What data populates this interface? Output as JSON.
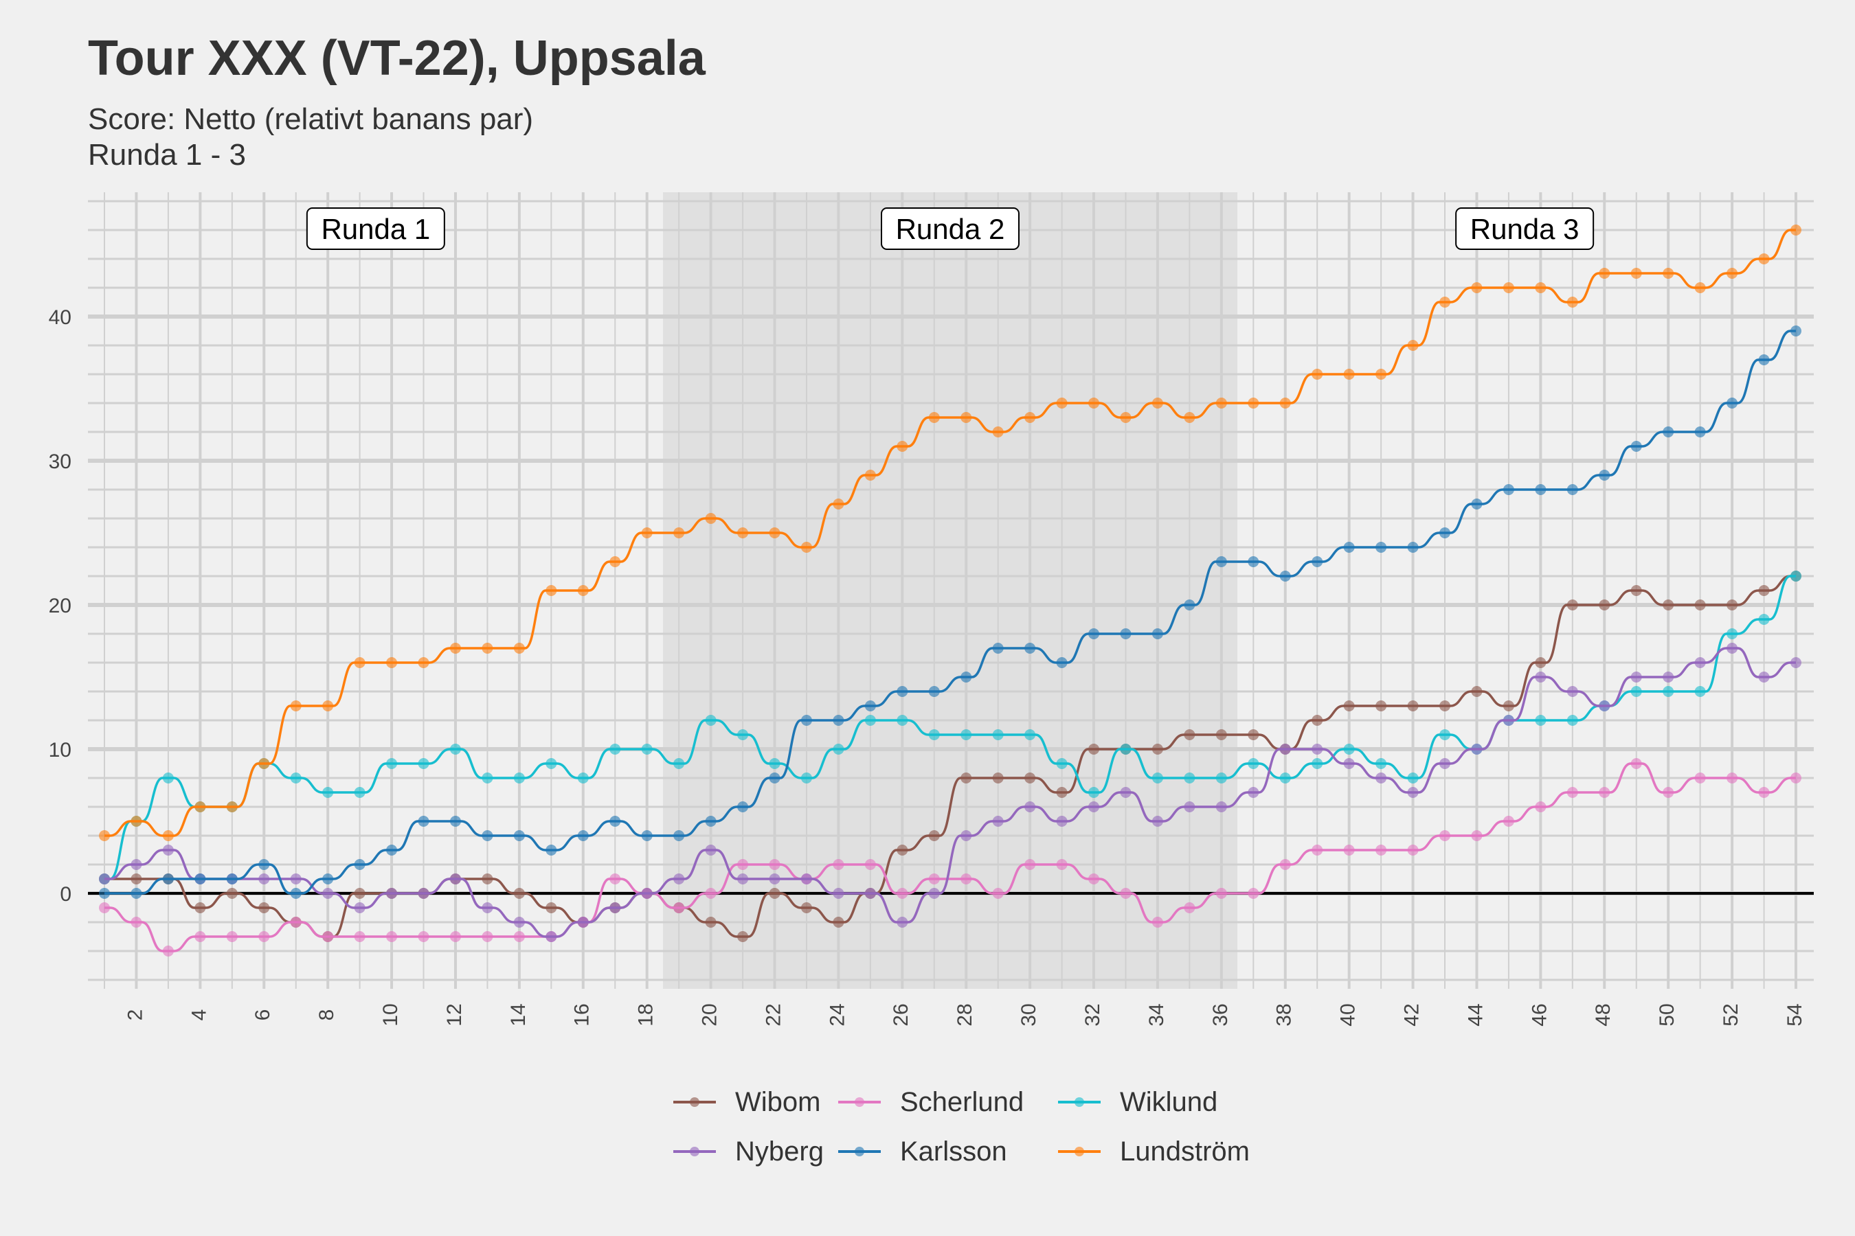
{
  "title": "Tour XXX (VT-22), Uppsala",
  "subtitle_line1": "Score: Netto (relativt banans par)",
  "subtitle_line2": "Runda 1 - 3",
  "chart_data": {
    "type": "line",
    "title": "Tour XXX (VT-22), Uppsala",
    "subtitle": "Score: Netto (relativt banans par) / Runda 1 - 3",
    "xlabel": "",
    "ylabel": "",
    "xlim": [
      1,
      54
    ],
    "ylim": [
      -6,
      48
    ],
    "x_ticks": [
      2,
      4,
      6,
      8,
      10,
      12,
      14,
      16,
      18,
      20,
      22,
      24,
      26,
      28,
      30,
      32,
      34,
      36,
      38,
      40,
      42,
      44,
      46,
      48,
      50,
      52,
      54
    ],
    "y_ticks": [
      0,
      10,
      20,
      30,
      40
    ],
    "grid": true,
    "legend_position": "bottom",
    "rounds": [
      {
        "label": "Runda 1",
        "from": 1,
        "to": 18,
        "shaded": false
      },
      {
        "label": "Runda 2",
        "from": 19,
        "to": 36,
        "shaded": true
      },
      {
        "label": "Runda 3",
        "from": 37,
        "to": 54,
        "shaded": false
      }
    ],
    "x": [
      1,
      2,
      3,
      4,
      5,
      6,
      7,
      8,
      9,
      10,
      11,
      12,
      13,
      14,
      15,
      16,
      17,
      18,
      19,
      20,
      21,
      22,
      23,
      24,
      25,
      26,
      27,
      28,
      29,
      30,
      31,
      32,
      33,
      34,
      35,
      36,
      37,
      38,
      39,
      40,
      41,
      42,
      43,
      44,
      45,
      46,
      47,
      48,
      49,
      50,
      51,
      52,
      53,
      54
    ],
    "series": [
      {
        "name": "Wibom",
        "color": "#8c564b",
        "values": [
          1,
          1,
          1,
          -1,
          0,
          -1,
          -2,
          -3,
          0,
          0,
          0,
          1,
          1,
          0,
          -1,
          -2,
          -1,
          0,
          -1,
          -2,
          -3,
          0,
          -1,
          -2,
          0,
          3,
          4,
          8,
          8,
          8,
          7,
          10,
          10,
          10,
          11,
          11,
          11,
          10,
          12,
          13,
          13,
          13,
          13,
          14,
          13,
          16,
          20,
          20,
          21,
          20,
          20,
          20,
          21,
          22
        ]
      },
      {
        "name": "Scherlund",
        "color": "#e377c2",
        "values": [
          -1,
          -2,
          -4,
          -3,
          -3,
          -3,
          -2,
          -3,
          -3,
          -3,
          -3,
          -3,
          -3,
          -3,
          -3,
          -2,
          1,
          0,
          -1,
          0,
          2,
          2,
          1,
          2,
          2,
          0,
          1,
          1,
          0,
          2,
          2,
          1,
          0,
          -2,
          -1,
          0,
          0,
          2,
          3,
          3,
          3,
          3,
          4,
          4,
          5,
          6,
          7,
          7,
          9,
          7,
          8,
          8,
          7,
          8
        ]
      },
      {
        "name": "Wiklund",
        "color": "#17becf",
        "values": [
          1,
          5,
          8,
          6,
          6,
          9,
          8,
          7,
          7,
          9,
          9,
          10,
          8,
          8,
          9,
          8,
          10,
          10,
          9,
          12,
          11,
          9,
          8,
          10,
          12,
          12,
          11,
          11,
          11,
          11,
          9,
          7,
          10,
          8,
          8,
          8,
          9,
          8,
          9,
          10,
          9,
          8,
          11,
          10,
          12,
          12,
          12,
          13,
          14,
          14,
          14,
          18,
          19,
          22
        ]
      },
      {
        "name": "Nyberg",
        "color": "#9467bd",
        "values": [
          1,
          2,
          3,
          1,
          1,
          1,
          1,
          0,
          -1,
          0,
          0,
          1,
          -1,
          -2,
          -3,
          -2,
          -1,
          0,
          1,
          3,
          1,
          1,
          1,
          0,
          0,
          -2,
          0,
          4,
          5,
          6,
          5,
          6,
          7,
          5,
          6,
          6,
          7,
          10,
          10,
          9,
          8,
          7,
          9,
          10,
          12,
          15,
          14,
          13,
          15,
          15,
          16,
          17,
          15,
          16
        ]
      },
      {
        "name": "Karlsson",
        "color": "#1f77b4",
        "values": [
          0,
          0,
          1,
          1,
          1,
          2,
          0,
          1,
          2,
          3,
          5,
          5,
          4,
          4,
          3,
          4,
          5,
          4,
          4,
          5,
          6,
          8,
          12,
          12,
          13,
          14,
          14,
          15,
          17,
          17,
          16,
          18,
          18,
          18,
          20,
          23,
          23,
          22,
          23,
          24,
          24,
          24,
          25,
          27,
          28,
          28,
          28,
          29,
          31,
          32,
          32,
          34,
          37,
          39
        ]
      },
      {
        "name": "Lundström",
        "color": "#ff7f0e",
        "values": [
          4,
          5,
          4,
          6,
          6,
          9,
          13,
          13,
          16,
          16,
          16,
          17,
          17,
          17,
          21,
          21,
          23,
          25,
          25,
          26,
          25,
          25,
          24,
          27,
          29,
          31,
          33,
          33,
          32,
          33,
          34,
          34,
          33,
          34,
          33,
          34,
          34,
          34,
          36,
          36,
          36,
          38,
          41,
          42,
          42,
          42,
          41,
          43,
          43,
          43,
          42,
          43,
          44,
          46
        ]
      }
    ]
  },
  "legend": [
    {
      "name": "Wibom",
      "color": "#8c564b"
    },
    {
      "name": "Scherlund",
      "color": "#e377c2"
    },
    {
      "name": "Wiklund",
      "color": "#17becf"
    },
    {
      "name": "Nyberg",
      "color": "#9467bd"
    },
    {
      "name": "Karlsson",
      "color": "#1f77b4"
    },
    {
      "name": "Lundström",
      "color": "#ff7f0e"
    }
  ]
}
